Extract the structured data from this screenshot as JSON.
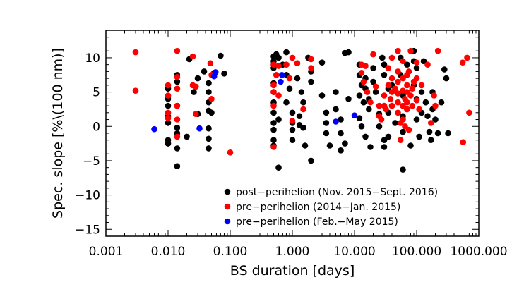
{
  "chart_data": {
    "type": "scatter",
    "title": "",
    "xlabel": "BS duration [days]",
    "ylabel": "Spec. slope [%\\(100 nm)]",
    "xscale": "log",
    "xlim": [
      0.001,
      1000
    ],
    "ylim": [
      -16,
      14
    ],
    "x_ticks": [
      0.001,
      0.01,
      0.1,
      1,
      10,
      100,
      1000
    ],
    "x_tick_labels": [
      "0.001",
      "0.010",
      "0.100",
      "1.000",
      "10.000",
      "100.000",
      "1000.000"
    ],
    "y_ticks": [
      -15,
      -10,
      -5,
      0,
      5,
      10
    ],
    "y_tick_labels": [
      "−15",
      "−10",
      "−5",
      "0",
      "5",
      "10"
    ],
    "legend_position": "bottom-right",
    "series": [
      {
        "name": "post−perihelion (Nov. 2015−Sept. 2016)",
        "color": "#000000",
        "points": [
          [
            0.01,
            5.5
          ],
          [
            0.01,
            3.0
          ],
          [
            0.01,
            1.5
          ],
          [
            0.01,
            0.5
          ],
          [
            0.01,
            -2.0
          ],
          [
            0.01,
            -2.5
          ],
          [
            0.01,
            4.0
          ],
          [
            0.014,
            7.5
          ],
          [
            0.014,
            6.5
          ],
          [
            0.014,
            3.0
          ],
          [
            0.014,
            -0.2
          ],
          [
            0.014,
            -1.0
          ],
          [
            0.014,
            -3.2
          ],
          [
            0.014,
            -5.8
          ],
          [
            0.022,
            9.8
          ],
          [
            0.026,
            5.0
          ],
          [
            0.03,
            7.0
          ],
          [
            0.038,
            8.0
          ],
          [
            0.045,
            6.3
          ],
          [
            0.045,
            5.0
          ],
          [
            0.045,
            3.5
          ],
          [
            0.045,
            2.3
          ],
          [
            0.045,
            -0.3
          ],
          [
            0.045,
            -1.8
          ],
          [
            0.045,
            -3.2
          ],
          [
            0.05,
            2.0
          ],
          [
            0.055,
            7.8
          ],
          [
            0.07,
            10.3
          ],
          [
            0.08,
            7.7
          ],
          [
            0.02,
            -1.5
          ],
          [
            0.03,
            1.8
          ],
          [
            0.5,
            10.2
          ],
          [
            0.5,
            9.5
          ],
          [
            0.5,
            8.5
          ],
          [
            0.5,
            6.3
          ],
          [
            0.5,
            5.0
          ],
          [
            0.5,
            3.5
          ],
          [
            0.5,
            2.0
          ],
          [
            0.5,
            0.5
          ],
          [
            0.5,
            -0.5
          ],
          [
            0.5,
            -2.0
          ],
          [
            0.5,
            -2.8
          ],
          [
            0.55,
            10.5
          ],
          [
            0.6,
            10.0
          ],
          [
            0.6,
            1.0
          ],
          [
            0.6,
            -6.0
          ],
          [
            0.7,
            9.0
          ],
          [
            0.8,
            10.8
          ],
          [
            0.8,
            7.5
          ],
          [
            0.8,
            3.5
          ],
          [
            0.9,
            5.5
          ],
          [
            1.0,
            2.0
          ],
          [
            1.0,
            0.5
          ],
          [
            1.0,
            -0.5
          ],
          [
            1.0,
            -2.0
          ],
          [
            1.2,
            7.0
          ],
          [
            1.3,
            1.5
          ],
          [
            1.3,
            0.2
          ],
          [
            1.4,
            5.0
          ],
          [
            1.5,
            3.5
          ],
          [
            1.5,
            -0.2
          ],
          [
            1.6,
            -2.8
          ],
          [
            1.8,
            10.0
          ],
          [
            2.0,
            8.0
          ],
          [
            2.0,
            6.5
          ],
          [
            2.0,
            -5.0
          ],
          [
            3.0,
            9.3
          ],
          [
            3.0,
            4.5
          ],
          [
            3.5,
            2.0
          ],
          [
            3.5,
            0.5
          ],
          [
            3.5,
            -1.0
          ],
          [
            4.0,
            -2.8
          ],
          [
            5.0,
            5.0
          ],
          [
            5.0,
            2.5
          ],
          [
            6.0,
            1.0
          ],
          [
            6.0,
            -1.0
          ],
          [
            6.0,
            -3.5
          ],
          [
            7.0,
            -2.5
          ],
          [
            7.0,
            10.7
          ],
          [
            8.0,
            10.8
          ],
          [
            8.0,
            4.0
          ],
          [
            12.0,
            7.5
          ],
          [
            12.0,
            9.0
          ],
          [
            12.0,
            4.5
          ],
          [
            12.0,
            1.2
          ],
          [
            13.0,
            6.0
          ],
          [
            13.0,
            0.0
          ],
          [
            14.0,
            3.5
          ],
          [
            15.0,
            7.0
          ],
          [
            15.0,
            5.5
          ],
          [
            15.0,
            -1.5
          ],
          [
            17.0,
            4.0
          ],
          [
            17.0,
            2.5
          ],
          [
            18.0,
            -3.0
          ],
          [
            20.0,
            8.5
          ],
          [
            20.0,
            6.5
          ],
          [
            22.0,
            5.0
          ],
          [
            25.0,
            1.8
          ],
          [
            25.0,
            0.0
          ],
          [
            28.0,
            10.0
          ],
          [
            30.0,
            9.0
          ],
          [
            30.0,
            7.5
          ],
          [
            30.0,
            -2.0
          ],
          [
            30.0,
            -3.0
          ],
          [
            35.0,
            5.5
          ],
          [
            35.0,
            2.0
          ],
          [
            35.0,
            -1.5
          ],
          [
            40.0,
            6.0
          ],
          [
            40.0,
            3.0
          ],
          [
            45.0,
            0.5
          ],
          [
            55.0,
            10.0
          ],
          [
            55.0,
            7.5
          ],
          [
            60.0,
            4.5
          ],
          [
            60.0,
            1.5
          ],
          [
            60.0,
            -0.8
          ],
          [
            60.0,
            -6.3
          ],
          [
            70.0,
            9.0
          ],
          [
            70.0,
            2.5
          ],
          [
            80.0,
            -2.8
          ],
          [
            90.0,
            11.0
          ],
          [
            90.0,
            9.5
          ],
          [
            90.0,
            6.0
          ],
          [
            100.0,
            8.5
          ],
          [
            100.0,
            4.0
          ],
          [
            100.0,
            1.0
          ],
          [
            110.0,
            -1.5
          ],
          [
            120.0,
            5.0
          ],
          [
            120.0,
            2.0
          ],
          [
            130.0,
            9.5
          ],
          [
            140.0,
            3.5
          ],
          [
            150.0,
            1.5
          ],
          [
            160.0,
            -0.8
          ],
          [
            170.0,
            -2.0
          ],
          [
            180.0,
            5.0
          ],
          [
            180.0,
            2.5
          ],
          [
            200.0,
            1.0
          ],
          [
            220.0,
            -1.0
          ],
          [
            250.0,
            3.5
          ],
          [
            280.0,
            8.3
          ],
          [
            300.0,
            7.0
          ],
          [
            320.0,
            -1.0
          ]
        ]
      },
      {
        "name": "pre−perihelion (2014−Jan. 2015)",
        "color": "#ff0000",
        "points": [
          [
            0.003,
            10.8
          ],
          [
            0.003,
            5.2
          ],
          [
            0.01,
            6.0
          ],
          [
            0.01,
            4.5
          ],
          [
            0.01,
            2.0
          ],
          [
            0.01,
            1.2
          ],
          [
            0.014,
            11.0
          ],
          [
            0.014,
            7.2
          ],
          [
            0.014,
            5.5
          ],
          [
            0.014,
            3.0
          ],
          [
            0.014,
            1.0
          ],
          [
            0.014,
            -1.5
          ],
          [
            0.025,
            10.2
          ],
          [
            0.025,
            6.0
          ],
          [
            0.028,
            5.8
          ],
          [
            0.028,
            1.8
          ],
          [
            0.048,
            9.2
          ],
          [
            0.05,
            7.5
          ],
          [
            0.05,
            4.0
          ],
          [
            0.1,
            -3.8
          ],
          [
            0.5,
            9.0
          ],
          [
            0.5,
            6.0
          ],
          [
            0.5,
            5.0
          ],
          [
            0.5,
            3.0
          ],
          [
            0.5,
            -3.0
          ],
          [
            0.55,
            7.5
          ],
          [
            0.6,
            8.8
          ],
          [
            0.6,
            4.5
          ],
          [
            0.8,
            9.0
          ],
          [
            0.9,
            7.0
          ],
          [
            1.0,
            10.0
          ],
          [
            1.0,
            0.8
          ],
          [
            1.2,
            9.2
          ],
          [
            1.5,
            2.5
          ],
          [
            2.0,
            9.8
          ],
          [
            2.0,
            8.5
          ],
          [
            13.0,
            9.0
          ],
          [
            13.0,
            7.8
          ],
          [
            14.0,
            6.5
          ],
          [
            15.0,
            8.8
          ],
          [
            16.0,
            5.0
          ],
          [
            18.0,
            3.5
          ],
          [
            20.0,
            10.5
          ],
          [
            22.0,
            5.8
          ],
          [
            25.0,
            3.0
          ],
          [
            25.0,
            1.5
          ],
          [
            27.0,
            1.0
          ],
          [
            30.0,
            4.5
          ],
          [
            30.0,
            3.0
          ],
          [
            32.0,
            2.5
          ],
          [
            35.0,
            8.5
          ],
          [
            35.0,
            6.0
          ],
          [
            38.0,
            4.0
          ],
          [
            40.0,
            10.0
          ],
          [
            40.0,
            7.0
          ],
          [
            40.0,
            5.0
          ],
          [
            40.0,
            3.0
          ],
          [
            45.0,
            5.5
          ],
          [
            50.0,
            11.0
          ],
          [
            50.0,
            8.0
          ],
          [
            50.0,
            6.5
          ],
          [
            50.0,
            4.8
          ],
          [
            50.0,
            3.5
          ],
          [
            50.0,
            2.0
          ],
          [
            55.0,
            0.5
          ],
          [
            55.0,
            -2.0
          ],
          [
            60.0,
            9.5
          ],
          [
            60.0,
            7.0
          ],
          [
            60.0,
            5.2
          ],
          [
            60.0,
            3.0
          ],
          [
            60.0,
            1.0
          ],
          [
            65.0,
            4.0
          ],
          [
            65.0,
            0.0
          ],
          [
            70.0,
            7.5
          ],
          [
            70.0,
            6.0
          ],
          [
            70.0,
            5.0
          ],
          [
            70.0,
            3.5
          ],
          [
            70.0,
            2.5
          ],
          [
            75.0,
            8.0
          ],
          [
            75.0,
            -0.5
          ],
          [
            80.0,
            11.0
          ],
          [
            80.0,
            4.5
          ],
          [
            85.0,
            5.5
          ],
          [
            85.0,
            3.0
          ],
          [
            90.0,
            6.5
          ],
          [
            100.0,
            9.3
          ],
          [
            100.0,
            7.0
          ],
          [
            100.0,
            3.8
          ],
          [
            110.0,
            2.5
          ],
          [
            120.0,
            6.0
          ],
          [
            150.0,
            9.0
          ],
          [
            170.0,
            0.5
          ],
          [
            190.0,
            4.5
          ],
          [
            200.0,
            3.0
          ],
          [
            220.0,
            11.0
          ],
          [
            550.0,
            9.3
          ],
          [
            560.0,
            -2.3
          ],
          [
            650.0,
            10.0
          ],
          [
            700.0,
            2.0
          ]
        ]
      },
      {
        "name": "pre−perihelion (Feb.−May 2015)",
        "color": "#0000ff",
        "points": [
          [
            0.006,
            -0.4
          ],
          [
            0.032,
            -0.3
          ],
          [
            0.055,
            7.3
          ],
          [
            0.058,
            7.9
          ],
          [
            0.65,
            6.5
          ],
          [
            0.68,
            7.5
          ],
          [
            5.0,
            0.7
          ],
          [
            10.0,
            1.6
          ]
        ]
      }
    ]
  }
}
